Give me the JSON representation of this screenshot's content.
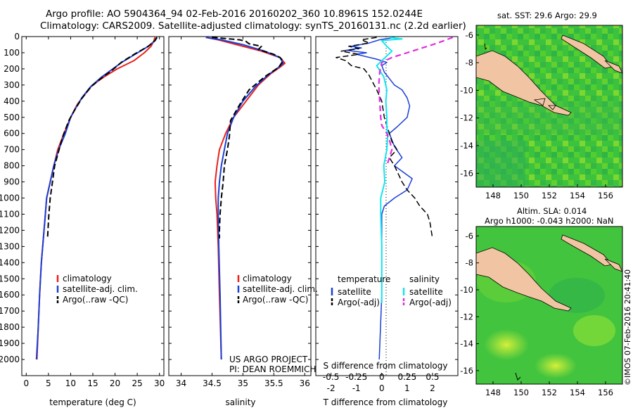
{
  "header": {
    "line1": "Argo profile: AO 5904364_94 02-Feb-2016 20160202_360 10.8961S 152.0244E",
    "line2": "Climatology: CARS2009. Satellite-adjusted climatology: synTS_20160131.nc (2.2d earlier)"
  },
  "colors": {
    "clim": "#e8211c",
    "sat": "#1a3fd6",
    "argo": "#000000",
    "sat_s": "#14e4f0",
    "argo_s": "#e32ce0"
  },
  "chart_data": [
    {
      "type": "line",
      "id": "temperature",
      "xlabel": "temperature (deg C)",
      "ylabel": "pressure",
      "xlim": [
        -1,
        31
      ],
      "ylim": [
        0,
        2100
      ],
      "xticks": [
        "0",
        "5",
        "10",
        "15",
        "20",
        "25",
        "30"
      ],
      "yticks": [
        "0",
        "100",
        "200",
        "300",
        "400",
        "500",
        "600",
        "700",
        "800",
        "900",
        "1000",
        "1100",
        "1200",
        "1300",
        "1400",
        "1500",
        "1600",
        "1700",
        "1800",
        "1900",
        "2000"
      ],
      "legend": [
        "climatology",
        "satellite-adj. clim.",
        "Argo(..raw -QC)"
      ],
      "series": [
        {
          "name": "climatology",
          "color": "clim",
          "dash": "",
          "width": 2,
          "points": [
            [
              29.0,
              5
            ],
            [
              28.7,
              30
            ],
            [
              28.1,
              60
            ],
            [
              26.6,
              100
            ],
            [
              24.2,
              150
            ],
            [
              20.5,
              200
            ],
            [
              17.5,
              250
            ],
            [
              14.9,
              300
            ],
            [
              12.9,
              370
            ],
            [
              11.5,
              420
            ],
            [
              10.0,
              500
            ],
            [
              8.5,
              600
            ],
            [
              7.1,
              700
            ],
            [
              6.2,
              800
            ],
            [
              5.4,
              900
            ],
            [
              4.6,
              1000
            ],
            [
              4.3,
              1100
            ],
            [
              4.0,
              1200
            ],
            [
              3.4,
              1400
            ],
            [
              3.0,
              1600
            ],
            [
              2.7,
              1800
            ],
            [
              2.4,
              2000
            ]
          ]
        },
        {
          "name": "satellite-adj. clim.",
          "color": "sat",
          "dash": "",
          "width": 2,
          "points": [
            [
              29.5,
              5
            ],
            [
              29.0,
              25
            ],
            [
              27.5,
              60
            ],
            [
              24.5,
              110
            ],
            [
              21.5,
              160
            ],
            [
              19.5,
              200
            ],
            [
              17.0,
              250
            ],
            [
              14.5,
              310
            ],
            [
              12.5,
              380
            ],
            [
              11.0,
              450
            ],
            [
              10.0,
              500
            ],
            [
              8.8,
              600
            ],
            [
              7.3,
              700
            ],
            [
              6.2,
              800
            ],
            [
              5.4,
              900
            ],
            [
              4.6,
              1000
            ],
            [
              4.3,
              1100
            ],
            [
              4.0,
              1200
            ],
            [
              3.4,
              1400
            ],
            [
              3.0,
              1600
            ],
            [
              2.7,
              1800
            ],
            [
              2.3,
              2000
            ]
          ]
        },
        {
          "name": "Argo(..raw -QC)",
          "color": "argo",
          "dash": "8,4",
          "width": 2,
          "points": [
            [
              29.4,
              5
            ],
            [
              29.0,
              25
            ],
            [
              27.5,
              60
            ],
            [
              24.3,
              110
            ],
            [
              21.4,
              160
            ],
            [
              19.3,
              210
            ],
            [
              16.8,
              260
            ],
            [
              14.6,
              310
            ],
            [
              12.6,
              380
            ],
            [
              11.0,
              450
            ],
            [
              9.6,
              520
            ],
            [
              8.2,
              620
            ],
            [
              7.4,
              700
            ],
            [
              6.4,
              800
            ],
            [
              5.9,
              900
            ],
            [
              5.4,
              1000
            ],
            [
              5.1,
              1100
            ],
            [
              4.9,
              1200
            ],
            [
              4.8,
              1250
            ]
          ]
        }
      ]
    },
    {
      "type": "line",
      "id": "salinity",
      "xlabel": "salinity",
      "xlim": [
        33.8,
        36.1
      ],
      "ylim": [
        0,
        2100
      ],
      "xticks": [
        "34",
        "34.5",
        "35",
        "35.5",
        "36"
      ],
      "legend": [
        "climatology",
        "satellite-adj. clim.",
        "Argo(..raw -QC)"
      ],
      "note": [
        "US ARGO PROJECT",
        "PI: DEAN ROEMMICH"
      ],
      "series": [
        {
          "name": "climatology",
          "color": "clim",
          "dash": "",
          "width": 2,
          "points": [
            [
              34.4,
              5
            ],
            [
              34.6,
              20
            ],
            [
              34.9,
              50
            ],
            [
              35.3,
              90
            ],
            [
              35.6,
              130
            ],
            [
              35.68,
              165
            ],
            [
              35.6,
              190
            ],
            [
              35.45,
              230
            ],
            [
              35.25,
              300
            ],
            [
              35.05,
              400
            ],
            [
              34.85,
              500
            ],
            [
              34.72,
              600
            ],
            [
              34.62,
              700
            ],
            [
              34.58,
              800
            ],
            [
              34.55,
              900
            ],
            [
              34.56,
              1000
            ],
            [
              34.58,
              1100
            ],
            [
              34.6,
              1300
            ],
            [
              34.62,
              1600
            ],
            [
              34.65,
              2000
            ]
          ]
        },
        {
          "name": "satellite-adj. clim.",
          "color": "sat",
          "dash": "",
          "width": 2,
          "points": [
            [
              34.4,
              5
            ],
            [
              34.65,
              20
            ],
            [
              35.0,
              50
            ],
            [
              35.35,
              90
            ],
            [
              35.6,
              130
            ],
            [
              35.65,
              165
            ],
            [
              35.58,
              190
            ],
            [
              35.4,
              240
            ],
            [
              35.2,
              310
            ],
            [
              35.0,
              400
            ],
            [
              34.85,
              500
            ],
            [
              34.75,
              600
            ],
            [
              34.7,
              700
            ],
            [
              34.65,
              800
            ],
            [
              34.62,
              900
            ],
            [
              34.6,
              1000
            ],
            [
              34.6,
              1100
            ],
            [
              34.61,
              1300
            ],
            [
              34.63,
              1600
            ],
            [
              34.65,
              2000
            ]
          ]
        },
        {
          "name": "Argo(..raw -QC)",
          "color": "argo",
          "dash": "8,4",
          "width": 2,
          "points": [
            [
              34.5,
              5
            ],
            [
              34.95,
              20
            ],
            [
              35.05,
              30
            ],
            [
              35.1,
              45
            ],
            [
              35.3,
              60
            ],
            [
              35.25,
              80
            ],
            [
              35.5,
              110
            ],
            [
              35.6,
              130
            ],
            [
              35.65,
              150
            ],
            [
              35.58,
              190
            ],
            [
              35.35,
              250
            ],
            [
              35.1,
              330
            ],
            [
              34.95,
              420
            ],
            [
              34.8,
              520
            ],
            [
              34.78,
              620
            ],
            [
              34.75,
              700
            ],
            [
              34.7,
              800
            ],
            [
              34.68,
              900
            ],
            [
              34.65,
              1000
            ],
            [
              34.63,
              1100
            ],
            [
              34.62,
              1200
            ],
            [
              34.62,
              1250
            ]
          ]
        }
      ]
    },
    {
      "type": "line",
      "id": "difference",
      "xlabel_top": "S difference from climatology",
      "xlabel": "T difference from climatology",
      "xlim_T": [
        -2.6,
        3.0
      ],
      "xlim_S": [
        -0.65,
        0.75
      ],
      "ylim": [
        0,
        2100
      ],
      "xticks_T": [
        "-2",
        "-1",
        "0",
        "1",
        "2"
      ],
      "xticks_S": [
        "-0.5",
        "-0.25",
        "0",
        "0.25",
        "0.5"
      ],
      "legend_heads": [
        "temperature",
        "salinity"
      ],
      "legend": [
        "satellite",
        "Argo(-adj)",
        "satellite",
        "Argo(-adj)"
      ],
      "series": [
        {
          "name": "temperature satellite",
          "axis": "T",
          "color": "sat",
          "dash": "",
          "width": 1.5,
          "points": [
            [
              0.5,
              5
            ],
            [
              -0.1,
              20
            ],
            [
              -0.5,
              40
            ],
            [
              -1.2,
              60
            ],
            [
              -0.8,
              70
            ],
            [
              -1.4,
              85
            ],
            [
              -0.6,
              100
            ],
            [
              -1.0,
              110
            ],
            [
              -0.2,
              140
            ],
            [
              0.2,
              160
            ],
            [
              0.0,
              180
            ],
            [
              0.1,
              220
            ],
            [
              0.3,
              260
            ],
            [
              0.5,
              300
            ],
            [
              0.8,
              330
            ],
            [
              1.0,
              380
            ],
            [
              1.1,
              430
            ],
            [
              1.0,
              500
            ],
            [
              0.6,
              560
            ],
            [
              0.3,
              600
            ],
            [
              0.5,
              680
            ],
            [
              0.8,
              750
            ],
            [
              0.5,
              800
            ],
            [
              1.2,
              880
            ],
            [
              1.0,
              950
            ],
            [
              0.5,
              1000
            ],
            [
              0.1,
              1050
            ],
            [
              0.0,
              1100
            ],
            [
              0.0,
              1300
            ],
            [
              0.0,
              1600
            ],
            [
              -0.1,
              2000
            ]
          ]
        },
        {
          "name": "temperature Argo(-adj)",
          "axis": "T",
          "color": "argo",
          "dash": "8,4",
          "width": 1.5,
          "points": [
            [
              -0.2,
              5
            ],
            [
              -0.8,
              20
            ],
            [
              -0.5,
              40
            ],
            [
              -1.3,
              60
            ],
            [
              -0.9,
              75
            ],
            [
              -1.6,
              90
            ],
            [
              -0.9,
              110
            ],
            [
              -1.8,
              130
            ],
            [
              -1.4,
              150
            ],
            [
              -1.2,
              180
            ],
            [
              -0.7,
              200
            ],
            [
              -0.5,
              240
            ],
            [
              -0.3,
              300
            ],
            [
              -0.2,
              330
            ],
            [
              0.0,
              400
            ],
            [
              0.1,
              500
            ],
            [
              0.3,
              600
            ],
            [
              0.4,
              650
            ],
            [
              0.6,
              700
            ],
            [
              0.3,
              750
            ],
            [
              0.5,
              800
            ],
            [
              0.8,
              900
            ],
            [
              1.0,
              950
            ],
            [
              1.3,
              1000
            ],
            [
              1.5,
              1050
            ],
            [
              1.8,
              1100
            ],
            [
              1.9,
              1150
            ],
            [
              2.0,
              1250
            ]
          ]
        },
        {
          "name": "salinity satellite",
          "axis": "S",
          "color": "sat_s",
          "dash": "",
          "width": 2,
          "points": [
            [
              0.08,
              5
            ],
            [
              0.2,
              15
            ],
            [
              0.08,
              20
            ],
            [
              0.0,
              25
            ],
            [
              0.05,
              60
            ],
            [
              0.1,
              90
            ],
            [
              0.05,
              120
            ],
            [
              -0.05,
              180
            ],
            [
              0.02,
              250
            ],
            [
              0.05,
              330
            ],
            [
              0.04,
              400
            ],
            [
              0.05,
              500
            ],
            [
              0.05,
              560
            ],
            [
              0.06,
              600
            ],
            [
              0.05,
              700
            ],
            [
              0.02,
              800
            ],
            [
              0.03,
              900
            ],
            [
              -0.01,
              1000
            ],
            [
              -0.01,
              1100
            ],
            [
              0.0,
              1300
            ],
            [
              0.0,
              1400
            ],
            [
              0.0,
              1600
            ],
            [
              0.0,
              1650
            ]
          ]
        },
        {
          "name": "salinity Argo(-adj)",
          "axis": "S",
          "color": "argo_s",
          "dash": "8,5",
          "width": 2.2,
          "points": [
            [
              0.7,
              5
            ],
            [
              0.55,
              40
            ],
            [
              0.4,
              70
            ],
            [
              0.25,
              100
            ],
            [
              0.1,
              130
            ],
            [
              0.0,
              160
            ],
            [
              -0.02,
              220
            ],
            [
              -0.03,
              300
            ],
            [
              -0.02,
              400
            ],
            [
              -0.01,
              500
            ],
            [
              0.0,
              550
            ],
            [
              0.05,
              600
            ],
            [
              0.08,
              650
            ],
            [
              0.1,
              700
            ],
            [
              0.05,
              800
            ]
          ]
        }
      ]
    },
    {
      "type": "heatmap",
      "id": "sst_map",
      "title": "sat. SST: 29.6 Argo: 29.9",
      "xticks": [
        "148",
        "150",
        "152",
        "154",
        "156"
      ],
      "yticks": [
        "-6",
        "-8",
        "-10",
        "-12",
        "-14",
        "-16"
      ],
      "xlim": [
        146.8,
        157.2
      ],
      "ylim": [
        -17,
        -5.3
      ]
    },
    {
      "type": "heatmap",
      "id": "sla_map",
      "title_lines": [
        "Altim. SLA: 0.014",
        "Argo h1000: -0.043 h2000: NaN"
      ],
      "xticks": [
        "148",
        "150",
        "152",
        "154",
        "156"
      ],
      "yticks": [
        "-6",
        "-8",
        "-10",
        "-12",
        "-14",
        "-16"
      ],
      "xlim": [
        146.8,
        157.2
      ],
      "ylim": [
        -17,
        -5.3
      ]
    }
  ],
  "credit": "©IMOS 07-Feb-2016 20:41:40"
}
